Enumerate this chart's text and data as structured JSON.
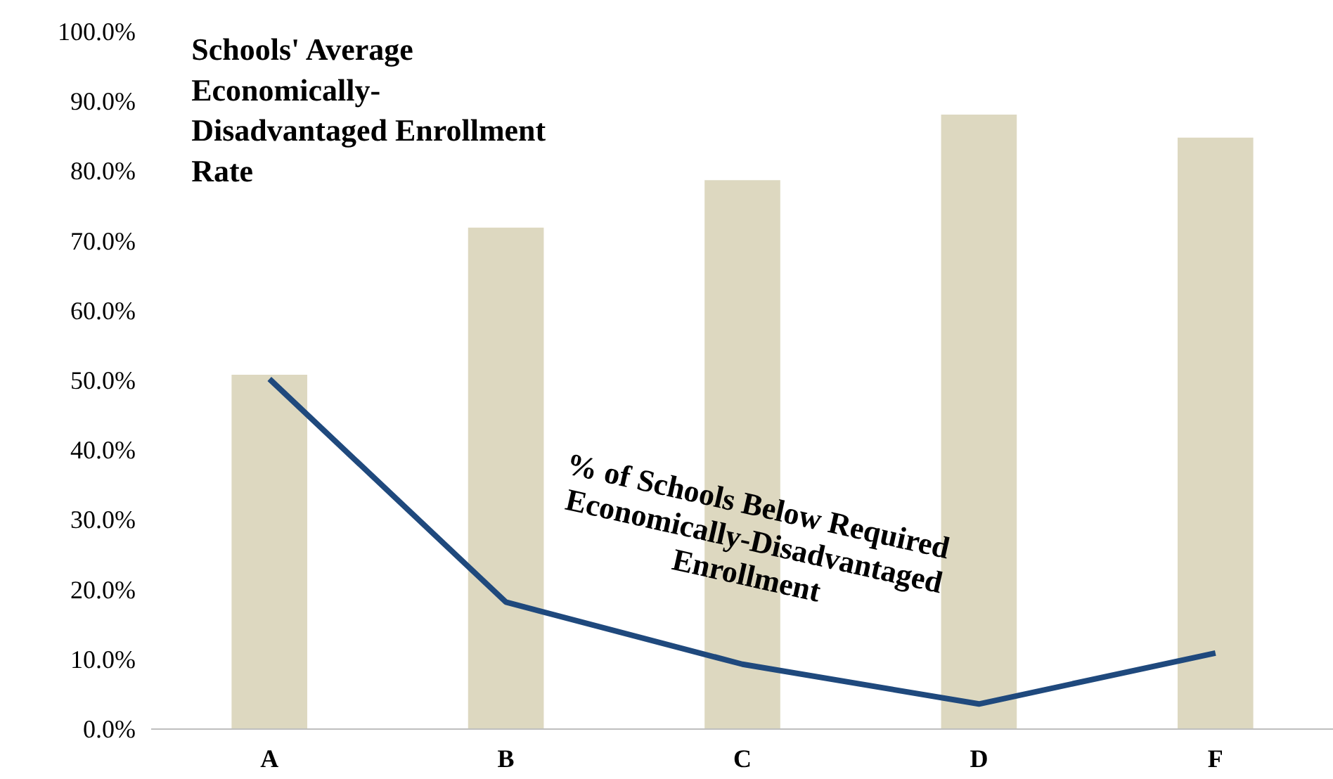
{
  "chart_data": {
    "type": "bar",
    "categories": [
      "A",
      "B",
      "C",
      "D",
      "F"
    ],
    "series": [
      {
        "name": "Schools' Average\nEconomically-\nDisadvantaged Enrollment\nRate",
        "color": "#ddd8c0",
        "values": [
          50.8,
          71.9,
          78.7,
          88.1,
          84.8
        ]
      },
      {
        "name": "% of Schools  Below Required\nEconomically-Disadvantaged\nEnrollment",
        "type": "line",
        "color": "#1f497d",
        "values": [
          50.2,
          18.2,
          9.3,
          3.6,
          10.9
        ]
      }
    ],
    "ylim": [
      0,
      100
    ],
    "yticks": [
      {
        "value": 0,
        "label": "0.0%"
      },
      {
        "value": 10,
        "label": "10.0%"
      },
      {
        "value": 20,
        "label": "20.0%"
      },
      {
        "value": 30,
        "label": "30.0%"
      },
      {
        "value": 40,
        "label": "40.0%"
      },
      {
        "value": 50,
        "label": "50.0%"
      },
      {
        "value": 60,
        "label": "60.0%"
      },
      {
        "value": 70,
        "label": "70.0%"
      },
      {
        "value": 80,
        "label": "80.0%"
      },
      {
        "value": 90,
        "label": "90.0%"
      },
      {
        "value": 100,
        "label": "100.0%"
      }
    ],
    "grid": false,
    "legend": false,
    "marker": "none",
    "line_style": "solid"
  }
}
